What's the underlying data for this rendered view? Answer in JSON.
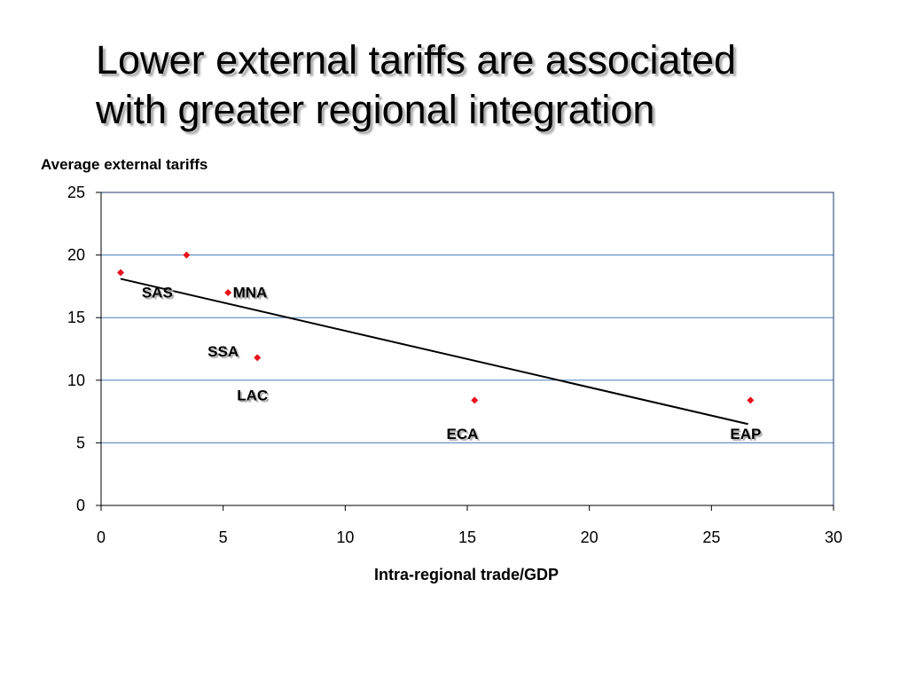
{
  "slide": {
    "title_line1": "Lower external tariffs are associated",
    "title_line2": "with greater regional integration"
  },
  "colors": {
    "point": "#e8101a",
    "gridline": "#4a7ebb",
    "axis": "#000000",
    "plot_border": "#1f3a6e",
    "trend": "#000000"
  },
  "chart_data": {
    "type": "scatter",
    "title": "Lower external tariffs are associated with greater regional integration",
    "xlabel": "Intra-regional trade/GDP",
    "ylabel": "Average external tariffs",
    "xlim": [
      0,
      30
    ],
    "ylim": [
      0,
      25
    ],
    "x_ticks": [
      0,
      5,
      10,
      15,
      20,
      25,
      30
    ],
    "y_ticks": [
      0,
      5,
      10,
      15,
      20,
      25
    ],
    "grid": {
      "horizontal": true,
      "vertical": false
    },
    "points": [
      {
        "x": 0.8,
        "y": 18.6
      },
      {
        "x": 3.5,
        "y": 20.0
      },
      {
        "x": 5.2,
        "y": 17.0
      },
      {
        "x": 6.4,
        "y": 11.8
      },
      {
        "x": 15.3,
        "y": 8.4
      },
      {
        "x": 26.6,
        "y": 8.4
      }
    ],
    "annotations": [
      {
        "text": "SAS",
        "x": 2.3,
        "y": 16.6
      },
      {
        "text": "MNA",
        "x": 6.1,
        "y": 16.6
      },
      {
        "text": "SSA",
        "x": 5.0,
        "y": 11.9
      },
      {
        "text": "LAC",
        "x": 6.2,
        "y": 8.4
      },
      {
        "text": "ECA",
        "x": 14.8,
        "y": 5.3
      },
      {
        "text": "EAP",
        "x": 26.4,
        "y": 5.3
      }
    ],
    "trendline": {
      "x": [
        0.8,
        26.5
      ],
      "y": [
        18.1,
        6.5
      ]
    }
  }
}
